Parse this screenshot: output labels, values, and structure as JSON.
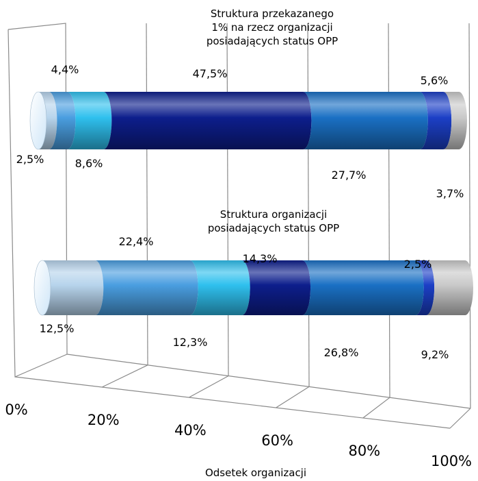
{
  "chart_data": {
    "type": "bar",
    "stacked": true,
    "orientation": "horizontal",
    "style": "3d-cylinder",
    "xlabel": "Odsetek organizacji",
    "x_ticks": [
      "0%",
      "20%",
      "40%",
      "60%",
      "80%",
      "100%"
    ],
    "xlim": [
      0,
      100
    ],
    "grid": true,
    "segment_colors": [
      "#b7d4ec",
      "#4a9ee0",
      "#2fc0ee",
      "#0d1e8c",
      "#1a70c4",
      "#1c3fc6",
      "#c9c9c9"
    ],
    "bars": [
      {
        "title_lines": [
          "Struktura przekazanego",
          "1% na rzecz organizacji",
          "posiadających status OPP"
        ],
        "values": [
          2.5,
          4.4,
          8.6,
          47.5,
          27.7,
          5.6,
          3.7
        ],
        "labels": [
          "2,5%",
          "4,4%",
          "8,6%",
          "47,5%",
          "27,7%",
          "5,6%",
          "3,7%"
        ]
      },
      {
        "title_lines": [
          "Struktura organizacji",
          "posiadających status OPP"
        ],
        "values": [
          12.5,
          22.4,
          12.3,
          14.3,
          26.8,
          2.5,
          9.2
        ],
        "labels": [
          "12,5%",
          "22,4%",
          "12,3%",
          "14,3%",
          "26,8%",
          "2,5%",
          "9,2%"
        ]
      }
    ]
  }
}
